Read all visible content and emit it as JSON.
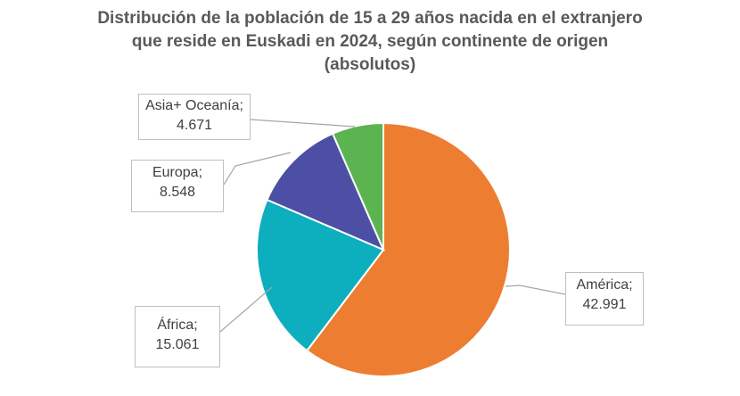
{
  "chart_data": {
    "type": "pie",
    "title_lines": [
      "Distribución de la población  de 15 a 29 años nacida  en el extranjero",
      "que reside en Euskadi en 2024, según continente de origen",
      "(absolutos)"
    ],
    "start": "top, clockwise",
    "slices": [
      {
        "name": "América",
        "label": "América;",
        "value_label": "42.991",
        "value": 42991,
        "color": "#ED7D31"
      },
      {
        "name": "África",
        "label": "África;",
        "value_label": "15.061",
        "value": 15061,
        "color": "#0DAEBD"
      },
      {
        "name": "Europa",
        "label": "Europa;",
        "value_label": "8.548",
        "value": 8548,
        "color": "#4C4FA3"
      },
      {
        "name": "Asia+ Oceanía",
        "label": "Asia+ Oceanía;",
        "value_label": "4.671",
        "value": 4671,
        "color": "#5BB450"
      }
    ]
  }
}
